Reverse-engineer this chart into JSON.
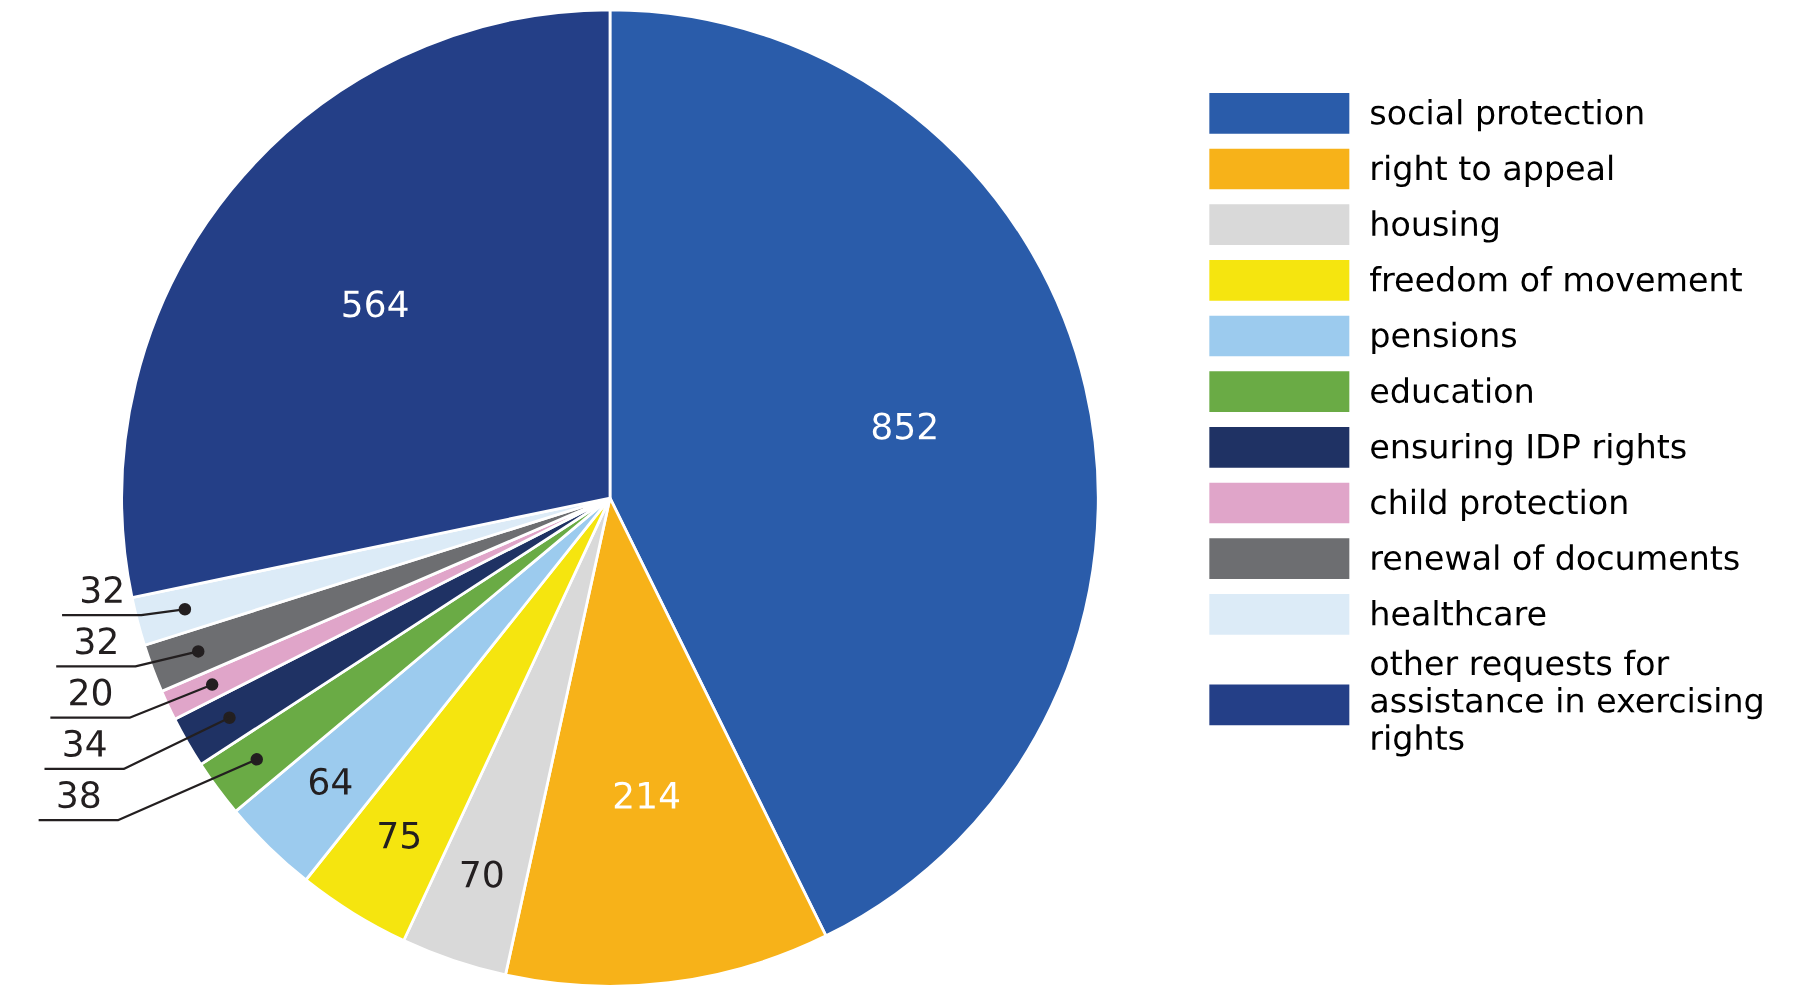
{
  "chart_data": {
    "type": "pie",
    "categories": [
      "social protection",
      "right to appeal",
      "housing",
      "freedom of movement",
      "pensions",
      "education",
      "ensuring IDP rights",
      "child protection",
      "renewal of documents",
      "healthcare",
      "other requests for assistance in exercising rights"
    ],
    "values": [
      852,
      214,
      70,
      75,
      64,
      38,
      34,
      20,
      32,
      32,
      564
    ],
    "colors": [
      "#2a5caa",
      "#f7b219",
      "#d9d9d9",
      "#f5e50f",
      "#9ccbee",
      "#6aab45",
      "#1f3264",
      "#e0a5c9",
      "#6d6e71",
      "#dcebf7",
      "#243f87"
    ],
    "data_labels": true,
    "legend": "right"
  }
}
